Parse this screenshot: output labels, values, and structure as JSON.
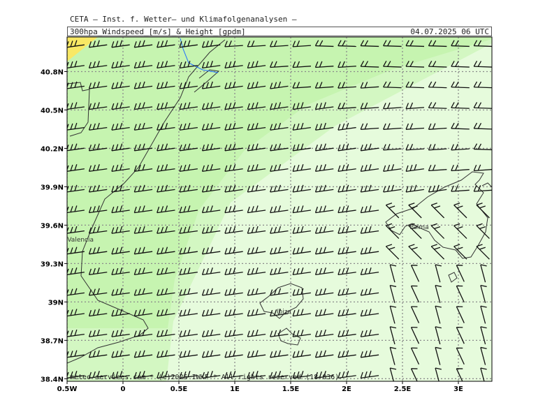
{
  "header": {
    "title": "CETA – Inst. f. Wetter– und Klimafolgenanalysen –",
    "field": "300hpa_Windspeed_[m/s]_&_Height_[gpdm]",
    "datetime": "04.07.2025 06 UTC"
  },
  "footer": {
    "credit": "meteo-services.com * (c)2025 IWKF * All rights reserved (18+036)"
  },
  "axes": {
    "lon_labels": [
      "0.5W",
      "0",
      "0.5E",
      "1E",
      "1.5E",
      "2E",
      "2.5E",
      "3E"
    ],
    "lon_values": [
      -0.5,
      0,
      0.5,
      1,
      1.5,
      2,
      2.5,
      3
    ],
    "lat_labels": [
      "40.8N",
      "40.5N",
      "40.2N",
      "39.9N",
      "39.6N",
      "39.3N",
      "39N",
      "38.7N",
      "38.4N"
    ],
    "lat_values": [
      40.8,
      40.5,
      40.2,
      39.9,
      39.6,
      39.3,
      39.0,
      38.7,
      38.4
    ],
    "lon_range": [
      -0.5,
      3.3
    ],
    "lat_range": [
      38.38,
      41.07
    ],
    "grid": true
  },
  "places": [
    {
      "name": "Valencia",
      "lon": -0.38,
      "lat": 39.47
    },
    {
      "name": "Palma",
      "lon": 2.65,
      "lat": 39.57
    },
    {
      "name": "Ibiza",
      "lon": 1.44,
      "lat": 38.91
    }
  ],
  "colors": {
    "band_high": "#c6f4b0",
    "band_mid": "#d3f7c2",
    "band_low": "#e6fbdc",
    "band_max": "#f8e864",
    "barb": "#111111",
    "coast": "#333333",
    "river": "#1a6bff",
    "grid": "#8a8a8a"
  }
}
